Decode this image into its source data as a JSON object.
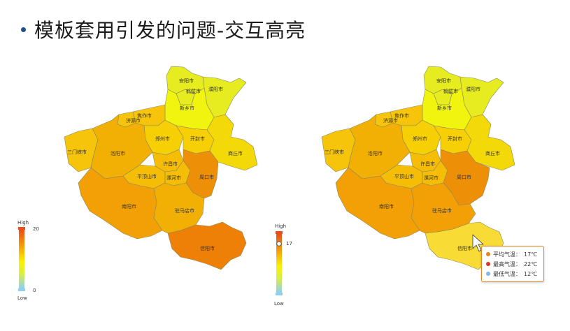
{
  "slide": {
    "title": "模板套用引发的问题-交互高亮"
  },
  "cities": {
    "anyang": "安阳市",
    "hebi": "鹤壁市",
    "puyang": "濮阳市",
    "xinxiang": "新乡市",
    "jiaozuo": "焦作市",
    "jiyuan": "济源市",
    "zhengzhou": "郑州市",
    "kaifeng": "开封市",
    "sanmenxia": "三门峡市",
    "luoyang": "洛阳市",
    "shangqiu": "商丘市",
    "xuchang": "许昌市",
    "pingdingshan": "平顶山市",
    "luohe": "漯河市",
    "zhoukou": "周口市",
    "nanyang": "南阳市",
    "zhumadian": "驻马店市",
    "xinyang": "信阳市"
  },
  "left_legend": {
    "high": "High",
    "low": "Low",
    "max": "20",
    "min": "0"
  },
  "right_legend": {
    "high": "High",
    "low": "Low",
    "value": "17"
  },
  "tooltip": {
    "rows": [
      {
        "label": "平均气温：",
        "value": "17℃",
        "color": "#e8841a"
      },
      {
        "label": "最高气温：",
        "value": "22℃",
        "color": "#d9381e"
      },
      {
        "label": "最低气温：",
        "value": "12℃",
        "color": "#8ab4e8"
      }
    ]
  },
  "colors": {
    "deep_orange": "#ee8008",
    "orange": "#f2a005",
    "amber": "#f5bd05",
    "gold": "#f7cf05",
    "yellow": "#f2e205",
    "lime": "#e0f21c",
    "light_yellow": "#f8db35"
  }
}
